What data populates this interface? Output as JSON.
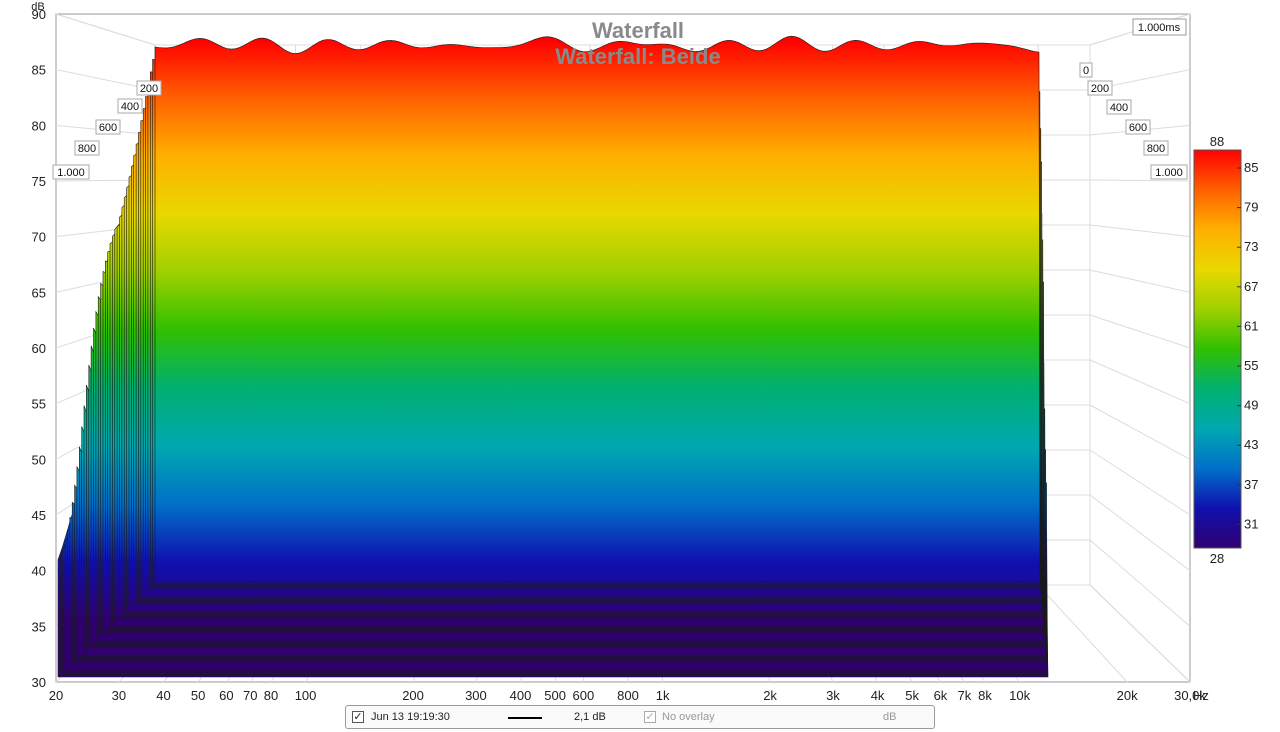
{
  "chart_data": {
    "type": "waterfall",
    "title": "Waterfall",
    "subtitle": "Waterfall: Beide",
    "ylabel": "dB",
    "xunit": "Hz",
    "ylim": [
      30,
      90
    ],
    "xlim": [
      20,
      30000
    ],
    "xscale": "log",
    "y_ticks": [
      "30",
      "35",
      "40",
      "45",
      "50",
      "55",
      "60",
      "65",
      "70",
      "75",
      "80",
      "85",
      "90"
    ],
    "x_ticks": [
      {
        "f": 20,
        "label": "20"
      },
      {
        "f": 30,
        "label": "30"
      },
      {
        "f": 40,
        "label": "40"
      },
      {
        "f": 50,
        "label": "50"
      },
      {
        "f": 60,
        "label": "60"
      },
      {
        "f": 70,
        "label": "70"
      },
      {
        "f": 80,
        "label": "80"
      },
      {
        "f": 100,
        "label": "100"
      },
      {
        "f": 200,
        "label": "200"
      },
      {
        "f": 300,
        "label": "300"
      },
      {
        "f": 400,
        "label": "400"
      },
      {
        "f": 500,
        "label": "500"
      },
      {
        "f": 600,
        "label": "600"
      },
      {
        "f": 800,
        "label": "800"
      },
      {
        "f": 1000,
        "label": "1k"
      },
      {
        "f": 2000,
        "label": "2k"
      },
      {
        "f": 3000,
        "label": "3k"
      },
      {
        "f": 4000,
        "label": "4k"
      },
      {
        "f": 5000,
        "label": "5k"
      },
      {
        "f": 6000,
        "label": "6k"
      },
      {
        "f": 7000,
        "label": "7k"
      },
      {
        "f": 8000,
        "label": "8k"
      },
      {
        "f": 10000,
        "label": "10k"
      },
      {
        "f": 20000,
        "label": "20k"
      },
      {
        "f": 30000,
        "label": "30,0k"
      }
    ],
    "time_ticks_left": [
      "200",
      "400",
      "600",
      "800",
      "1.000"
    ],
    "time_ticks_right": [
      "0",
      "200",
      "400",
      "600",
      "800",
      "1.000"
    ],
    "time_range_label": "1.000ms",
    "colorbar": {
      "min_label": "28",
      "max_label": "88",
      "ticks": [
        "85",
        "79",
        "73",
        "67",
        "61",
        "55",
        "49",
        "43",
        "37",
        "31"
      ],
      "colors": [
        "#ff0000",
        "#ff6000",
        "#ffb000",
        "#e8d800",
        "#a0d000",
        "#30c000",
        "#00b070",
        "#00a8b0",
        "#0070c8",
        "#1010b0",
        "#300070"
      ]
    },
    "front_slice_peak_db": 87,
    "rear_slice_floor_db": 39
  },
  "legend": {
    "checked": true,
    "trace_label": "Jun 13 19:19:30",
    "smoothing": "2,1 dB",
    "overlay_label": "No overlay",
    "unit": "dB"
  }
}
